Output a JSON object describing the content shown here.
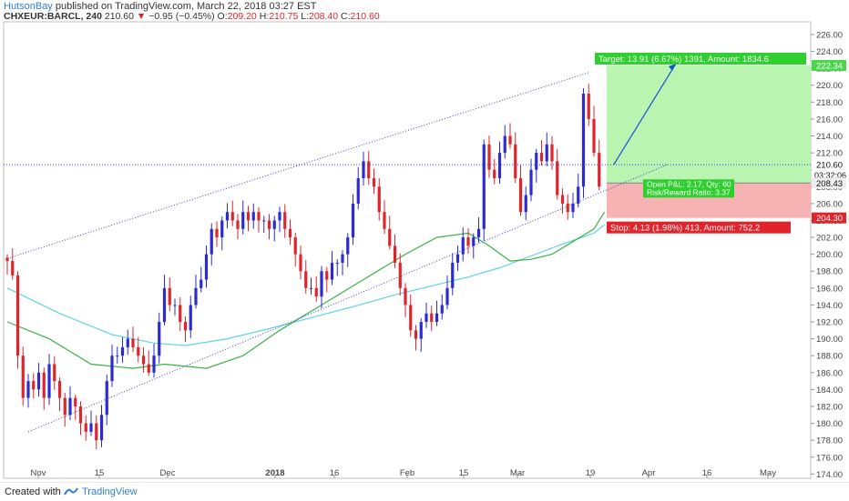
{
  "header": {
    "author": "HutsonBay",
    "published": "published on TradingView.com, March 22, 2018 03:27 EST",
    "symbol": "CHXEUR:BARCL, 240",
    "last": "210.60",
    "change": "−0.95 (−0.45%)",
    "o_label": "O:",
    "o_val": "209.20",
    "h_label": "H:",
    "h_val": "210.75",
    "l_label": "L:",
    "l_val": "208.40",
    "c_label": "C:",
    "c_val": "210.60"
  },
  "footer": {
    "created_with": "Created with",
    "brand": "TradingView"
  },
  "chart_data": {
    "type": "candlestick",
    "y_ticks": [
      "226.00",
      "224.00",
      "222.00",
      "220.00",
      "218.00",
      "216.00",
      "214.00",
      "212.00",
      "210.00",
      "208.00",
      "206.00",
      "204.00",
      "202.00",
      "200.00",
      "198.00",
      "196.00",
      "194.00",
      "192.00",
      "190.00",
      "188.00",
      "186.00",
      "184.00",
      "182.00",
      "180.00",
      "178.00",
      "176.00",
      "174.00"
    ],
    "ylim": [
      173.5,
      227.5
    ],
    "x_ticks": [
      "Nov",
      "15",
      "Dec",
      "2018",
      "16",
      "Feb",
      "15",
      "Mar",
      "19",
      "Apr",
      "16",
      "May"
    ],
    "price_labels": {
      "target_level": "222.34",
      "last_price": "210.60",
      "countdown": "03:32:06",
      "entry_price": "208.43",
      "stop_level": "204.30"
    },
    "levels": {
      "target": 222.34,
      "last": 210.6,
      "entry": 208.43,
      "stop": 204.3
    },
    "position": {
      "target_text": "Target: 13.91 (6.67%) 1391, Amount: 1834.6",
      "stop_text": "Stop: 4.13 (1.98%) 413, Amount: 752.2",
      "pnl_text": "Open P&L: 2.17, Qty: 60",
      "rr_text": "Risk/Reward Ratio: 3.37"
    },
    "colors": {
      "up": "#2b2bd6",
      "down": "#e0242b",
      "ma_green": "#3cb043",
      "ma_cyan": "#5fd3e6",
      "target_zone": "#b9f5b0",
      "stop_zone": "#f7b3b3",
      "channel": "#3f3fc8"
    },
    "closes": [
      199.2,
      197.5,
      188,
      183,
      185,
      184,
      186,
      183,
      187,
      185,
      183,
      181,
      183,
      182,
      180,
      179,
      180,
      178,
      181,
      185,
      188,
      188,
      189,
      190,
      189,
      188,
      187,
      186,
      188,
      192,
      196,
      194,
      194,
      192,
      191,
      194,
      196,
      197,
      200,
      203,
      202,
      204,
      205,
      204,
      203,
      205,
      204,
      205,
      204,
      204,
      203,
      204,
      205,
      203,
      202,
      200,
      198,
      196,
      196,
      195,
      198,
      197,
      199,
      199,
      200,
      202,
      206,
      209,
      211,
      209,
      208,
      205,
      203,
      201,
      199,
      196,
      194,
      191,
      190,
      192,
      193,
      192,
      193,
      194,
      196,
      199,
      200,
      202,
      201,
      202,
      203,
      213,
      210,
      209,
      212,
      214,
      213,
      209,
      205,
      207,
      210,
      212,
      211,
      213,
      211,
      207,
      206,
      205,
      206,
      208,
      219,
      216,
      212,
      208
    ],
    "ma_green": [
      [
        0,
        192
      ],
      [
        8,
        190
      ],
      [
        16,
        187
      ],
      [
        24,
        186.5
      ],
      [
        30,
        187
      ],
      [
        38,
        186.5
      ],
      [
        45,
        188
      ],
      [
        52,
        191
      ],
      [
        60,
        194
      ],
      [
        68,
        197
      ],
      [
        76,
        200
      ],
      [
        82,
        202
      ],
      [
        88,
        202.5
      ],
      [
        92,
        201
      ],
      [
        96,
        199.2
      ],
      [
        100,
        199.4
      ],
      [
        104,
        200
      ],
      [
        108,
        201.5
      ],
      [
        112,
        203
      ],
      [
        114,
        205
      ]
    ],
    "ma_cyan": [
      [
        0,
        196
      ],
      [
        10,
        193
      ],
      [
        20,
        190.5
      ],
      [
        28,
        189.5
      ],
      [
        34,
        189.2
      ],
      [
        42,
        190
      ],
      [
        50,
        191.2
      ],
      [
        58,
        192.5
      ],
      [
        66,
        193.8
      ],
      [
        74,
        195.2
      ],
      [
        82,
        196.4
      ],
      [
        88,
        197.3
      ],
      [
        94,
        198.4
      ],
      [
        100,
        199.8
      ],
      [
        106,
        201.2
      ],
      [
        112,
        202.5
      ],
      [
        114,
        203.5
      ]
    ],
    "channel_upper": [
      [
        0,
        199.5
      ],
      [
        111,
        221.5
      ]
    ],
    "channel_lower": [
      [
        4,
        179
      ],
      [
        126,
        210.6
      ]
    ]
  }
}
